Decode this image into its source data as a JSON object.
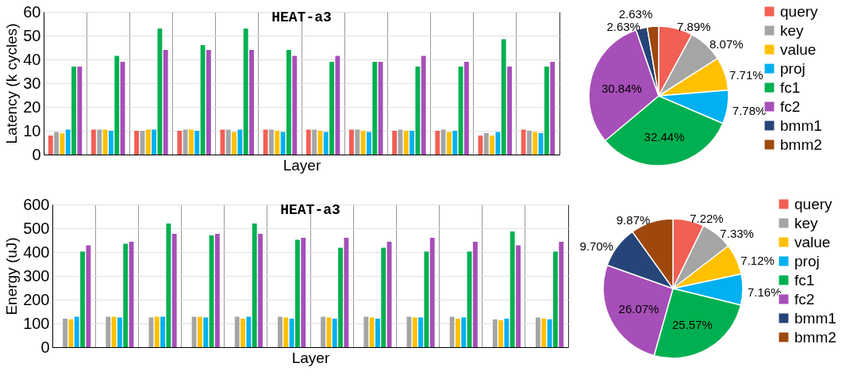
{
  "chart_data": [
    {
      "type": "bar",
      "title": "HEAT-a3",
      "xlabel": "Layer",
      "ylabel": "Latency (k cycles)",
      "categories": [
        null,
        null,
        null,
        null,
        null,
        null,
        null,
        null,
        null,
        null,
        null,
        null
      ],
      "ylim": [
        0,
        60
      ],
      "yticks": [
        0,
        10,
        20,
        30,
        40,
        50,
        60
      ],
      "grid": true,
      "legend": false,
      "tick_labels": "y",
      "series": [
        {
          "color": "#f25f55",
          "values": [
            8,
            10.5,
            10,
            10,
            10.5,
            10.5,
            10.5,
            10.5,
            10,
            10,
            8,
            10.5
          ]
        },
        {
          "color": "#a5a5a5",
          "values": [
            9.5,
            10.5,
            10,
            10.5,
            10.5,
            10.5,
            10.5,
            10.5,
            10.5,
            10.5,
            9,
            10
          ]
        },
        {
          "color": "#ffc000",
          "values": [
            9,
            10.5,
            10.5,
            10.5,
            9.5,
            10,
            10,
            10,
            10,
            9.5,
            8,
            9.5
          ]
        },
        {
          "color": "#00b0f0",
          "values": [
            10.5,
            10,
            10.5,
            10,
            10.5,
            9.5,
            9.5,
            9.5,
            10,
            10,
            9.5,
            9
          ]
        },
        {
          "color": "#00b050",
          "values": [
            37,
            41.5,
            53,
            46,
            53,
            44,
            39,
            39,
            37,
            37,
            48.5,
            37
          ]
        },
        {
          "color": "#a64fb8",
          "values": [
            37,
            39,
            44,
            44,
            44,
            41.5,
            41.5,
            39,
            41.5,
            39,
            37,
            39
          ]
        }
      ]
    },
    {
      "type": "pie",
      "categories": [
        "query",
        "key",
        "value",
        "proj",
        "fc1",
        "fc2",
        "bmm1",
        "bmm2"
      ],
      "values": [
        7.89,
        8.07,
        7.71,
        7.78,
        32.44,
        30.84,
        2.63,
        2.63
      ],
      "value_labels": [
        "7.89%",
        "8.07%",
        "7.71%",
        "7.78%",
        "32.44%",
        "30.84%",
        "2.63%",
        "2.63%"
      ],
      "colors": [
        "#f25f55",
        "#a5a5a5",
        "#ffc000",
        "#00b0f0",
        "#00b050",
        "#a64fb8",
        "#264478",
        "#9e480e"
      ],
      "legend": "right"
    },
    {
      "type": "bar",
      "title": "HEAT-a3",
      "xlabel": "Layer",
      "ylabel": "Energy (uJ)",
      "categories": [
        null,
        null,
        null,
        null,
        null,
        null,
        null,
        null,
        null,
        null,
        null,
        null
      ],
      "ylim": [
        0,
        600
      ],
      "yticks": [
        0,
        100,
        200,
        300,
        400,
        500,
        600
      ],
      "grid": true,
      "legend": false,
      "tick_labels": "y",
      "series": [
        {
          "color": "#f25f55",
          "values": [
            null,
            null,
            null,
            null,
            null,
            null,
            null,
            null,
            null,
            null,
            null,
            null
          ]
        },
        {
          "color": "#a5a5a5",
          "values": [
            120,
            128,
            125,
            128,
            128,
            128,
            128,
            128,
            128,
            128,
            117,
            125
          ]
        },
        {
          "color": "#ffc000",
          "values": [
            117,
            128,
            128,
            128,
            120,
            125,
            125,
            125,
            125,
            120,
            113,
            120
          ]
        },
        {
          "color": "#00b0f0",
          "values": [
            128,
            125,
            128,
            125,
            128,
            120,
            120,
            120,
            125,
            125,
            120,
            117
          ]
        },
        {
          "color": "#00b050",
          "values": [
            402,
            435,
            520,
            470,
            520,
            452,
            418,
            418,
            402,
            402,
            487,
            402
          ]
        },
        {
          "color": "#a64fb8",
          "values": [
            428,
            443,
            477,
            477,
            477,
            460,
            460,
            443,
            460,
            443,
            428,
            443
          ]
        }
      ]
    },
    {
      "type": "pie",
      "categories": [
        "query",
        "key",
        "value",
        "proj",
        "fc1",
        "fc2",
        "bmm1",
        "bmm2"
      ],
      "values": [
        7.22,
        7.33,
        7.12,
        7.16,
        25.57,
        26.07,
        9.7,
        9.87
      ],
      "value_labels": [
        "7.22%",
        "7.33%",
        "7.12%",
        "7.16%",
        "25.57%",
        "26.07%",
        "9.70%",
        "9.87%"
      ],
      "colors": [
        "#f25f55",
        "#a5a5a5",
        "#ffc000",
        "#00b0f0",
        "#00b050",
        "#a64fb8",
        "#264478",
        "#9e480e"
      ],
      "legend": "right"
    }
  ]
}
